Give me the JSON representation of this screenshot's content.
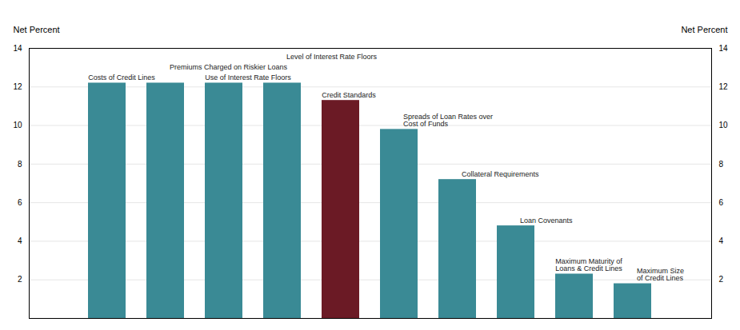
{
  "chart_data": {
    "type": "bar",
    "categories": [
      "Costs of Credit Lines",
      "Premiums Charged on Riskier Loans",
      "Use of Interest Rate Floors",
      "Level of Interest Rate Floors",
      "Credit Standards",
      "Spreads of Loan Rates over\nCost of Funds",
      "Collateral Requirements",
      "Loan Covenants",
      "Maximum Maturity of\nLoans & Credit Lines",
      "Maximum Size\nof Credit Lines"
    ],
    "values": [
      12.2,
      12.2,
      12.2,
      12.2,
      11.3,
      9.8,
      7.2,
      4.8,
      2.3,
      1.8
    ],
    "colors": [
      "#3a8a95",
      "#3a8a95",
      "#3a8a95",
      "#3a8a95",
      "#6b1a25",
      "#3a8a95",
      "#3a8a95",
      "#3a8a95",
      "#3a8a95",
      "#3a8a95"
    ],
    "ylabel": "Net Percent",
    "y2label": "Net Percent",
    "ylim": [
      0,
      14
    ],
    "yticks": [
      2,
      4,
      6,
      8,
      10,
      12,
      14
    ],
    "y2lim": [
      0,
      14
    ],
    "y2ticks": [
      2,
      4,
      6,
      8,
      10,
      12,
      14
    ],
    "grid": true,
    "tick_labels": "y"
  }
}
